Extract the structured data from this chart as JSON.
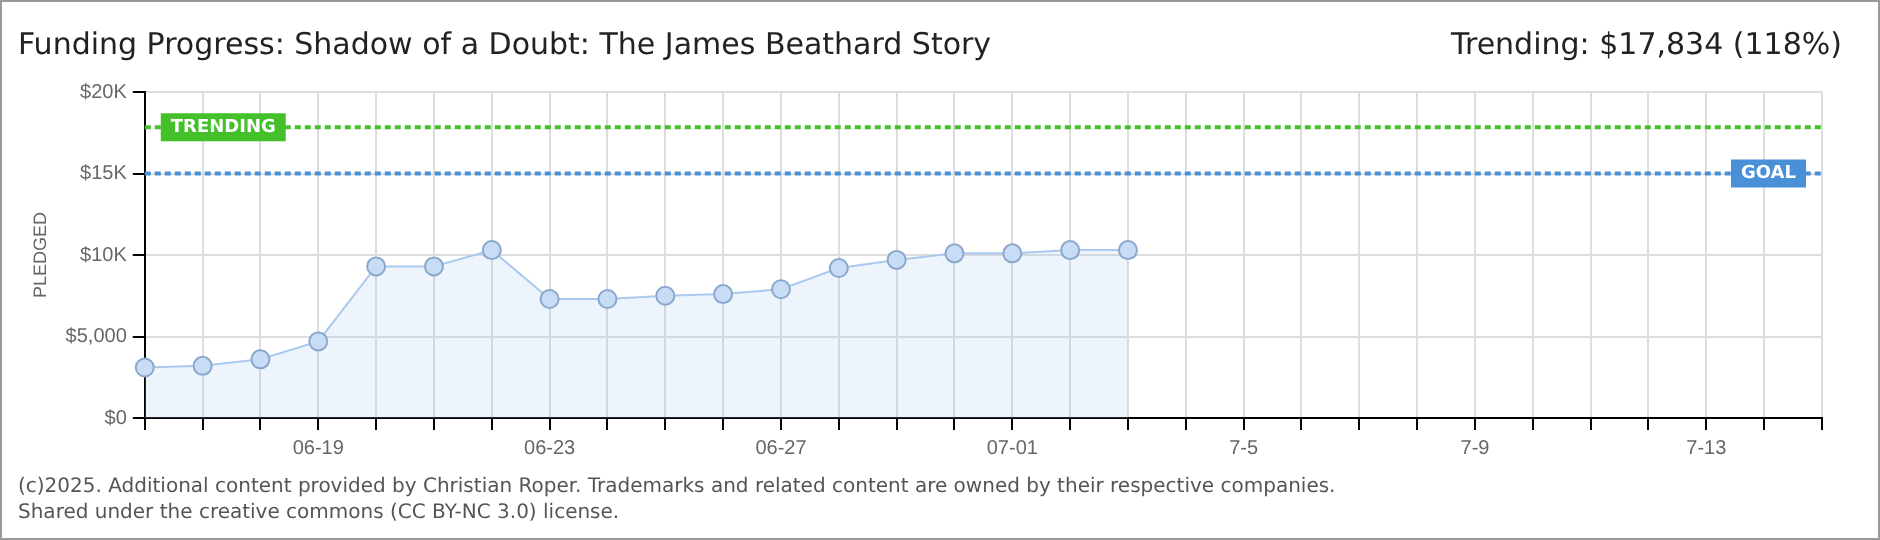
{
  "chart_data": {
    "type": "area",
    "title": "Funding Progress: Shadow of a Doubt: The James Beathard Story",
    "subtitle": "Trending: $17,834 (118%)",
    "ylabel": "PLEDGED",
    "categories": [
      null,
      null,
      null,
      "06-19",
      null,
      null,
      null,
      "06-23",
      null,
      null,
      null,
      "06-27",
      null,
      null,
      null,
      "07-01",
      null,
      null,
      null,
      "7-5",
      null,
      null,
      null,
      "7-9",
      null,
      null,
      null,
      "7-13",
      null,
      null
    ],
    "series": [
      {
        "color": "#a9c9ef",
        "values": [
          3100,
          3200,
          3600,
          4700,
          9300,
          9300,
          10300,
          7300,
          7300,
          7500,
          7600,
          7900,
          9200,
          9700,
          10100,
          10100,
          10300,
          10300,
          null,
          null,
          null,
          null,
          null,
          null,
          null,
          null,
          null,
          null,
          null,
          null
        ]
      }
    ],
    "ylim": [
      0,
      20000
    ],
    "yticks": [
      {
        "value": 0,
        "label": "$0"
      },
      {
        "value": 5000,
        "label": "$5,000"
      },
      {
        "value": 10000,
        "label": "$10K"
      },
      {
        "value": 15000,
        "label": "$15K"
      },
      {
        "value": 20000,
        "label": "$20K"
      }
    ],
    "ref_lines": [
      {
        "axis": "y",
        "value": 17834,
        "label": "TRENDING",
        "color": "#44c02a",
        "line_style": "dotted"
      },
      {
        "axis": "y",
        "value": 15000,
        "label": "GOAL",
        "color": "#4a90d9",
        "line_style": "dotted"
      }
    ],
    "grid": true,
    "marker": "circle",
    "legend": false,
    "annotations": [
      "(c)2025. Additional content provided by Christian Roper. Trademarks and related content are owned by their respective companies.",
      "Shared under the creative commons (CC BY-NC 3.0) license."
    ]
  }
}
